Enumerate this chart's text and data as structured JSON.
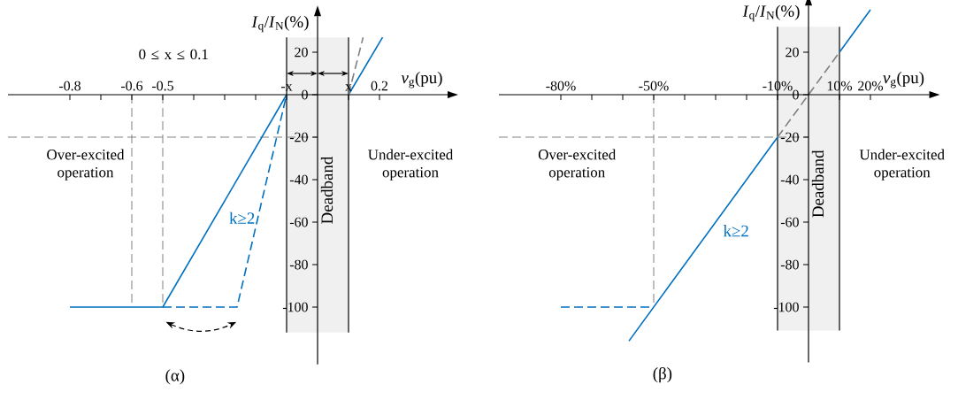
{
  "chart_data": [
    {
      "type": "line",
      "xlabel": "*v*$_{g}$(pu)",
      "ylabel": "*I*$_{q}$/*I*$_{N}$(%)",
      "xlim": [
        -1.0,
        0.42
      ],
      "ylim": [
        -127,
        37
      ],
      "xticks": [
        -0.8,
        {
          "value": -0.7,
          "label": null
        },
        -0.6,
        -0.5,
        {
          "value": -0.4,
          "label": null
        },
        {
          "value": -0.3,
          "label": null
        },
        {
          "value": -0.2,
          "label": null
        },
        {
          "value": -0.1,
          "label": "-x"
        },
        {
          "value": 0.1,
          "label": "x"
        },
        0.2
      ],
      "yticks": [
        20,
        0,
        -20,
        -40,
        -60,
        -80,
        -100
      ],
      "series": [
        {
          "color": "#0070c0",
          "line_style": "dashed",
          "x": [
            -0.5,
            -0.26,
            -0.1
          ],
          "values": [
            -100,
            -100,
            0
          ]
        },
        {
          "color": "#0070c0",
          "line_style": "solid",
          "x": [
            -0.8,
            -0.5,
            -0.1
          ],
          "values": [
            -100,
            -100,
            0
          ]
        },
        {
          "color": "#0070c0",
          "line_style": "solid",
          "x": [
            0.1,
            0.21
          ],
          "values": [
            0,
            27
          ]
        },
        {
          "color": "#808080",
          "line_style": "dashed",
          "x": [
            0.1,
            0.147
          ],
          "values": [
            0,
            27
          ]
        }
      ],
      "ref_lines": [
        {
          "axis": "x",
          "value": -0.6,
          "color": "#808080",
          "line_style": "dashed"
        },
        {
          "axis": "x",
          "value": -0.5,
          "color": "#808080",
          "line_style": "dashed"
        },
        {
          "axis": "y",
          "value": -20,
          "color": "#808080",
          "line_style": "dashed"
        }
      ],
      "bands": [
        {
          "axis": "x",
          "from": -0.1,
          "to": 0.1,
          "label": "Deadband",
          "color": "#f0f0f0"
        }
      ],
      "annotations": [
        "0 ≤ x ≤ 0.1",
        "Over-excited operation",
        "Under-excited operation",
        {
          "text": "k≥2",
          "x": -0.33,
          "y": -58
        },
        "(α)"
      ]
    },
    {
      "type": "line",
      "xlabel": "*v*$_{g}$(pu)",
      "ylabel": "*I*$_{q}$/*I*$_{N}$(%)",
      "xlim": [
        -100,
        39
      ],
      "ylim": [
        -126,
        42
      ],
      "xticks": [
        {
          "value": -80,
          "label": "-80%"
        },
        {
          "value": -70,
          "label": null
        },
        {
          "value": -60,
          "label": null
        },
        {
          "value": -50,
          "label": "-50%"
        },
        {
          "value": -40,
          "label": null
        },
        {
          "value": -30,
          "label": null
        },
        {
          "value": -20,
          "label": null
        },
        {
          "value": -10,
          "label": "-10%"
        },
        {
          "value": 10,
          "label": "10%"
        },
        {
          "value": 20,
          "label": "20%"
        }
      ],
      "yticks": [
        20,
        0,
        -20,
        -40,
        -60,
        -80,
        -100
      ],
      "series": [
        {
          "color": "#0070c0",
          "line_style": "solid",
          "x": [
            -58,
            -10,
            0,
            10,
            20
          ],
          "values": [
            -116,
            -20,
            null,
            20,
            40
          ]
        },
        {
          "color": "#0070c0",
          "line_style": "dashed",
          "x": [
            -80,
            -50
          ],
          "values": [
            -100,
            -100
          ]
        },
        {
          "color": "#808080",
          "line_style": "dashed",
          "x": [
            -10,
            10
          ],
          "values": [
            -20,
            20
          ]
        }
      ],
      "ref_lines": [
        {
          "axis": "x",
          "value": -50,
          "color": "#808080",
          "line_style": "dashed"
        },
        {
          "axis": "y",
          "value": -20,
          "color": "#808080",
          "line_style": "dashed"
        }
      ],
      "bands": [
        {
          "axis": "x",
          "from": -10,
          "to": 10,
          "label": "Deadband",
          "color": "#f0f0f0"
        }
      ],
      "annotations": [
        "Over-excited operation",
        "Under-excited operation",
        {
          "text": "k≥2",
          "x": -32,
          "y": -64
        },
        "(β)"
      ]
    }
  ]
}
